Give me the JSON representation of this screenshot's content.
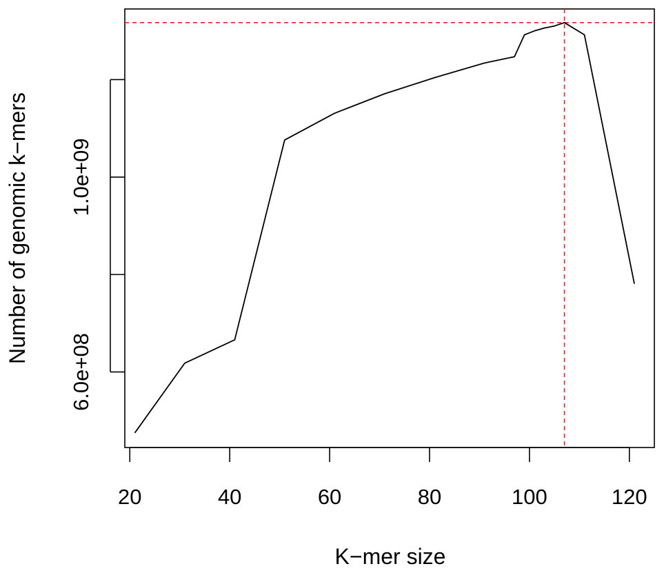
{
  "chart_data": {
    "type": "line",
    "title": "",
    "xlabel": "K−mer size",
    "ylabel": "Number of genomic k−mers",
    "xlim": [
      19,
      125
    ],
    "ylim": [
      445000000,
      1345000000
    ],
    "x_ticks": [
      20,
      40,
      60,
      80,
      100,
      120
    ],
    "x_tick_labels": [
      "20",
      "40",
      "60",
      "80",
      "100",
      "120"
    ],
    "y_ticks": [
      600000000,
      800000000,
      1000000000,
      1200000000
    ],
    "y_tick_labels": [
      "6.0e+08",
      "",
      "1.0e+09",
      ""
    ],
    "grid": false,
    "legend": "none",
    "series": [
      {
        "x": [
          21,
          31,
          41,
          51,
          61,
          71,
          81,
          91,
          97,
          99,
          101,
          103,
          105,
          107,
          111,
          121
        ],
        "y": [
          475000000,
          618000000,
          666000000,
          1076000000,
          1131000000,
          1171000000,
          1204000000,
          1234000000,
          1247000000,
          1292000000,
          1300000000,
          1306000000,
          1310000000,
          1317000000,
          1292000000,
          781000000
        ],
        "color": "#000000"
      }
    ],
    "reference_lines": {
      "vertical_x": 107,
      "horizontal_y": 1317000000,
      "color": "#e8202a",
      "style": "dashed"
    }
  }
}
